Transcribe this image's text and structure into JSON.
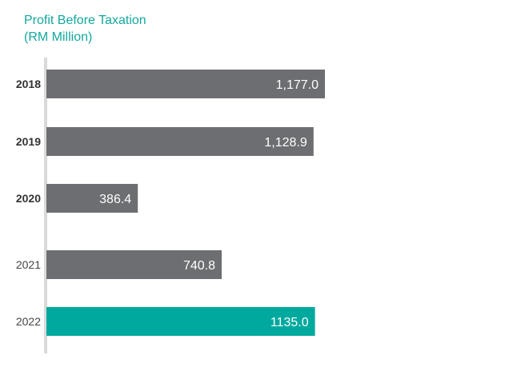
{
  "chart_data": {
    "type": "bar",
    "orientation": "horizontal",
    "title_lines": [
      "Profit Before Taxation",
      "(RM Million)"
    ],
    "categories": [
      "2018",
      "2019",
      "2020",
      "2021",
      "2022"
    ],
    "values": [
      1177.0,
      1128.9,
      386.4,
      740.8,
      1135.0
    ],
    "value_labels": [
      "1,177.0",
      "1,128.9",
      "386.4",
      "740.8",
      "1135.0"
    ],
    "bold_categories": [
      "2018",
      "2019",
      "2020"
    ],
    "highlight_category": "2022",
    "xlabel": "",
    "ylabel": "",
    "xlim": [
      0,
      1177.0
    ],
    "grid": false,
    "legend": "none",
    "colors": {
      "bar": "#6d6e71",
      "highlight": "#00a99d",
      "title": "#13a89e",
      "axis": "#d9d9d9"
    }
  }
}
